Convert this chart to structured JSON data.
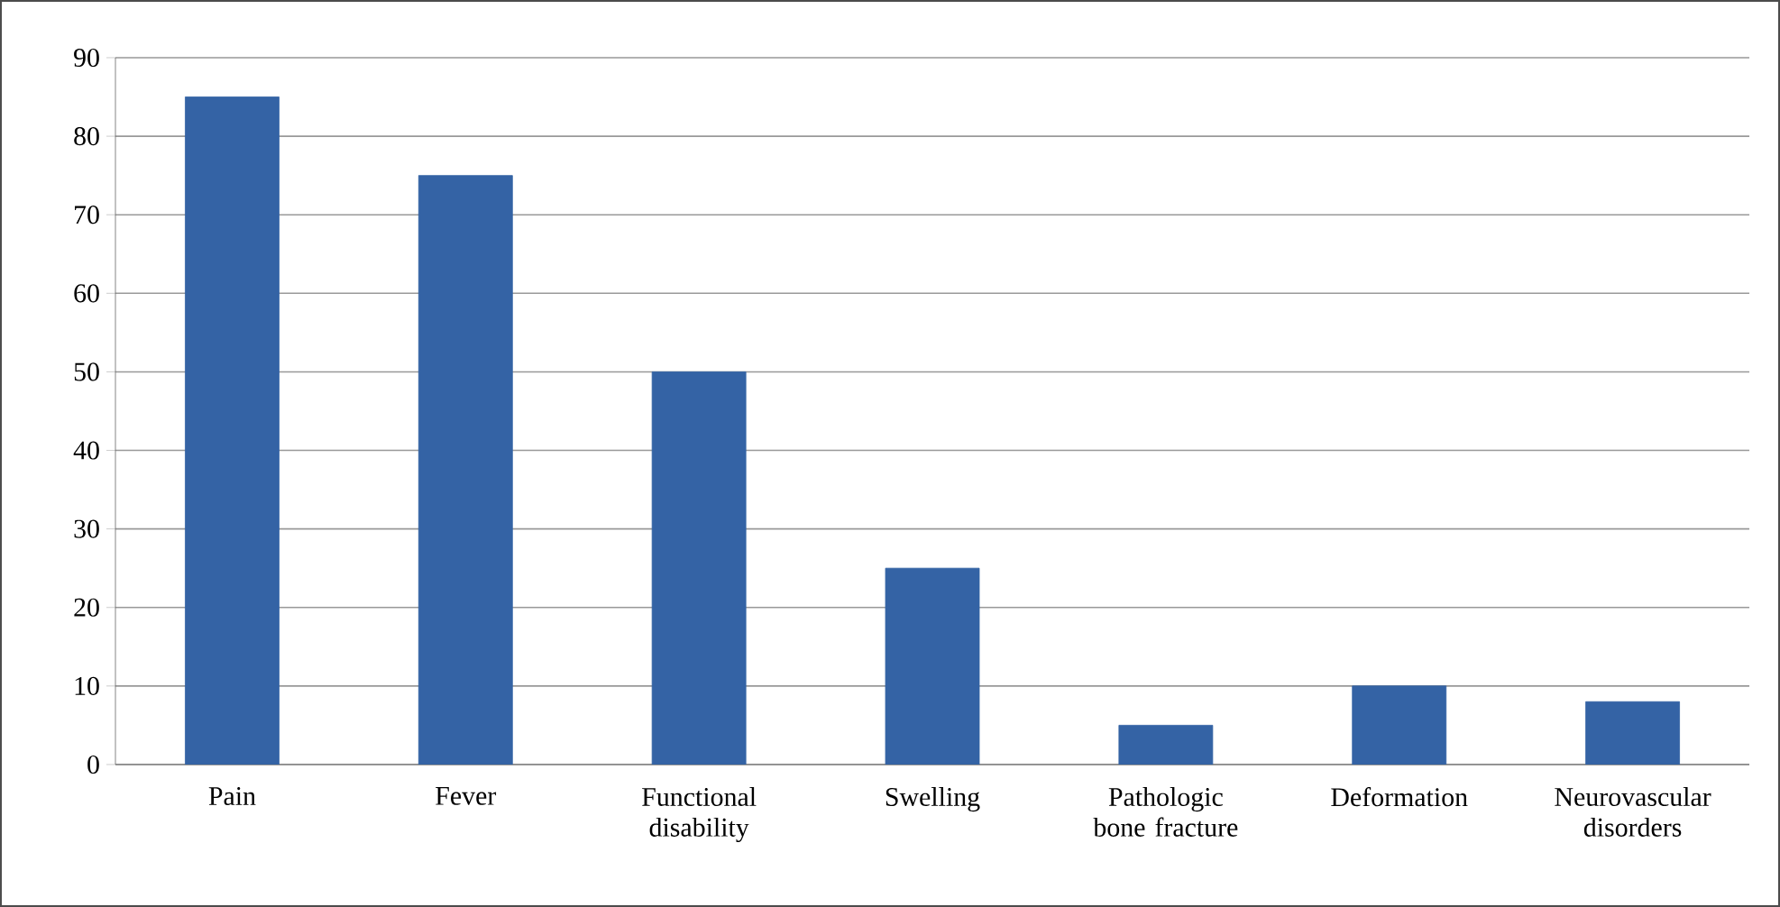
{
  "chart_data": {
    "type": "bar",
    "categories": [
      "Pain",
      "Fever",
      "Functional disability",
      "Swelling",
      "Pathologic bone fracture",
      "Deformation",
      "Neurovascular disorders"
    ],
    "values": [
      85,
      75,
      50,
      25,
      5,
      10,
      8
    ],
    "color": "#3463a5",
    "ylim": [
      0,
      90
    ],
    "yticks": [
      0,
      10,
      20,
      30,
      40,
      50,
      60,
      70,
      80,
      90
    ],
    "grid": "y"
  }
}
